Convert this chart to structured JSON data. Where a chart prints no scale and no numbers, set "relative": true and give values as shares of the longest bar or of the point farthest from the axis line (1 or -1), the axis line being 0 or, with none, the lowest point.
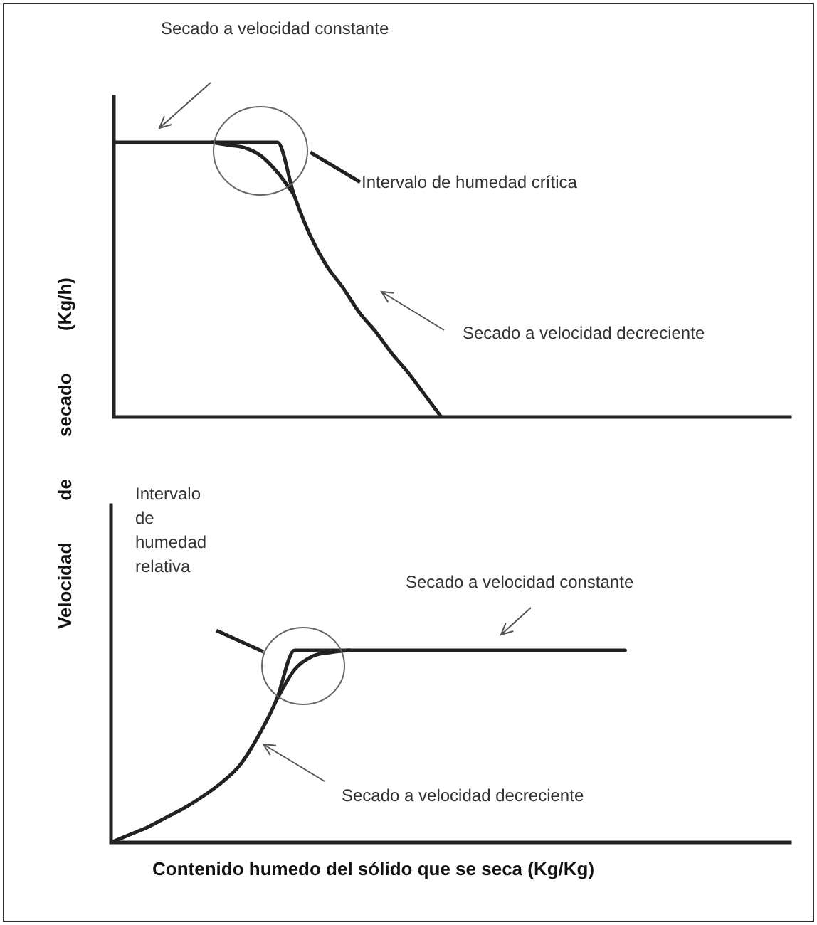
{
  "chart_data": [
    {
      "type": "line",
      "relative": true,
      "tick_labels": false,
      "legend": false,
      "ylabel": "Velocidad de secado (Kg/h)",
      "categories": [
        null,
        null,
        null,
        null,
        null,
        null,
        null,
        null,
        null,
        null,
        null,
        null,
        null,
        null,
        null,
        null,
        null,
        null,
        null,
        null,
        null,
        null,
        null,
        null,
        null,
        null,
        null,
        null,
        null,
        null,
        null,
        null,
        null,
        null,
        null,
        null,
        null,
        null,
        null,
        null,
        null,
        null
      ],
      "series": [
        {
          "color": "#222222",
          "values": [
            1,
            1,
            1,
            1,
            1,
            1,
            1,
            1,
            1,
            1,
            1,
            0.81,
            0.66,
            0.55,
            0.47,
            0.38,
            0.31,
            0.23,
            0.16,
            0.08,
            0,
            null,
            null,
            null,
            null,
            null,
            null,
            null,
            null,
            null,
            null,
            null,
            null,
            null,
            null,
            null,
            null,
            null,
            null,
            null,
            null,
            null
          ]
        },
        {
          "color": "#222222",
          "values": [
            null,
            null,
            null,
            null,
            null,
            null,
            1,
            0.99,
            0.98,
            0.95,
            0.89,
            0.81,
            null,
            null,
            null,
            null,
            null,
            null,
            null,
            null,
            null,
            null,
            null,
            null,
            null,
            null,
            null,
            null,
            null,
            null,
            null,
            null,
            null,
            null,
            null,
            null,
            null,
            null,
            null,
            null,
            null,
            null
          ]
        }
      ],
      "annotations": [
        "Secado a velocidad constante",
        "Intervalo de humedad crítica",
        "Secado a velocidad decreciente"
      ]
    },
    {
      "type": "line",
      "relative": true,
      "tick_labels": false,
      "legend": false,
      "xlabel": "Contenido humedo del sólido que se seca (Kg/Kg)",
      "categories": [
        null,
        null,
        null,
        null,
        null,
        null,
        null,
        null,
        null,
        null,
        null,
        null,
        null,
        null,
        null,
        null,
        null,
        null,
        null,
        null,
        null,
        null,
        null,
        null,
        null,
        null,
        null,
        null,
        null,
        null,
        null,
        null,
        null,
        null,
        null,
        null,
        null
      ],
      "series": [
        {
          "color": "#222222",
          "values": [
            0,
            0.04,
            0.08,
            0.13,
            0.18,
            0.24,
            0.31,
            0.4,
            0.55,
            0.74,
            1,
            1,
            1,
            1,
            1,
            1,
            1,
            1,
            1,
            1,
            1,
            1,
            1,
            1,
            1,
            1,
            1,
            1,
            1,
            null,
            null,
            null,
            null,
            null,
            null,
            null,
            null
          ]
        },
        {
          "color": "#222222",
          "values": [
            null,
            null,
            null,
            null,
            null,
            null,
            null,
            null,
            null,
            0.74,
            0.9,
            0.97,
            0.99,
            1,
            null,
            null,
            null,
            null,
            null,
            null,
            null,
            null,
            null,
            null,
            null,
            null,
            null,
            null,
            null,
            null,
            null,
            null,
            null,
            null,
            null,
            null,
            null
          ]
        }
      ],
      "annotations": [
        "Secado a velocidad constante",
        "Intervalo de humedad relativa",
        "Secado a velocidad decreciente"
      ]
    }
  ]
}
